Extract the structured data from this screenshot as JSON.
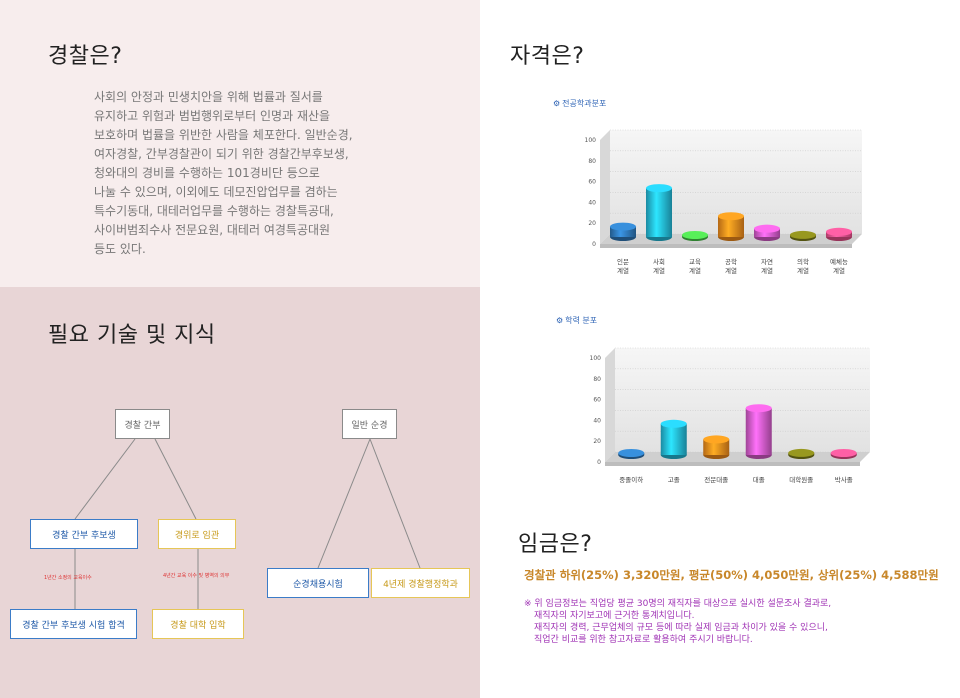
{
  "about": {
    "title": "경찰은?",
    "lines": [
      "사회의 안정과 민생치안을 위해 법률과 질서를",
      "유지하고 위험과 범법행위로부터 인명과 재산을",
      "보호하며 법률을 위반한 사람을 체포한다. 일반순경,",
      "여자경찰, 간부경찰관이 되기 위한 경찰간부후보생,",
      "청와대의 경비를 수행하는 101경비단 등으로",
      "나눌 수 있으며, 이외에도 데모진압업무를 겸하는",
      "특수기동대, 대테러업무를 수행하는 경찰특공대,",
      "사이버범죄수사 전문요원, 대테러 여경특공대원",
      "등도 있다."
    ]
  },
  "skills": {
    "title": "필요 기술 및 지식",
    "tree": {
      "root_left": "경찰 간부",
      "root_right": "일반 순경",
      "left_blue": "경찰 간부 후보생",
      "left_yellow": "경위로 임관",
      "left_blue_note": "1년간 소정의 교육이수",
      "left_yellow_note": "4년간 교육 이수 및 병역의 의무",
      "left_blue_child": "경찰 간부 후보생 시험 합격",
      "left_yellow_child": "경찰 대학 입학",
      "right_blue": "순경채용시험",
      "right_yellow": "4년제 경찰행정학과"
    }
  },
  "qualification": {
    "title": "자격은?"
  },
  "salary": {
    "title": "임금은?",
    "summary": "경찰관 하위(25%) 3,320만원, 평균(50%) 4,050만원, 상위(25%) 4,588만원",
    "notes": [
      "※ 위 임금정보는 직업당 평균 30명의 재직자를 대상으로 실시한 설문조사 결과로,",
      "재직자의 자기보고에 근거한 통계치입니다.",
      "재직자의 경력, 근무업체의 규모 등에 따라 실제 임금과 차이가 있을 수 있으니,",
      "직업간 비교를 위한 참고자료로 활용하여 주시기 바랍니다."
    ]
  },
  "chart_data": [
    {
      "type": "bar",
      "title": "전공학과분포",
      "categories": [
        [
          "인문",
          "계열"
        ],
        [
          "사회",
          "계열"
        ],
        [
          "교육",
          "계열"
        ],
        [
          "공학",
          "계열"
        ],
        [
          "자연",
          "계열"
        ],
        [
          "의학",
          "계열"
        ],
        [
          "예체능",
          "계열"
        ]
      ],
      "values": [
        10,
        47,
        0,
        20,
        8,
        2,
        5
      ],
      "colors": [
        "#2f78b8",
        "#24b8d8",
        "#49c74a",
        "#f08a1c",
        "#d45ac8",
        "#7f7f1a",
        "#e8508a"
      ],
      "ylim": [
        0,
        100
      ],
      "yticks": [
        "0",
        "20",
        "40",
        "60",
        "80",
        "100"
      ]
    },
    {
      "type": "bar",
      "title": "학력 분포",
      "categories": [
        [
          "중졸이하"
        ],
        [
          "고졸"
        ],
        [
          "전문대졸"
        ],
        [
          "대졸"
        ],
        [
          "대학원졸"
        ],
        [
          "박사졸"
        ]
      ],
      "values": [
        0,
        30,
        15,
        45,
        2,
        0
      ],
      "colors": [
        "#2f78b8",
        "#24b8d8",
        "#f08a1c",
        "#d45ac8",
        "#7f7f1a",
        "#e8508a"
      ],
      "ylim": [
        0,
        100
      ],
      "yticks": [
        "0",
        "20",
        "40",
        "60",
        "80",
        "100"
      ]
    }
  ]
}
